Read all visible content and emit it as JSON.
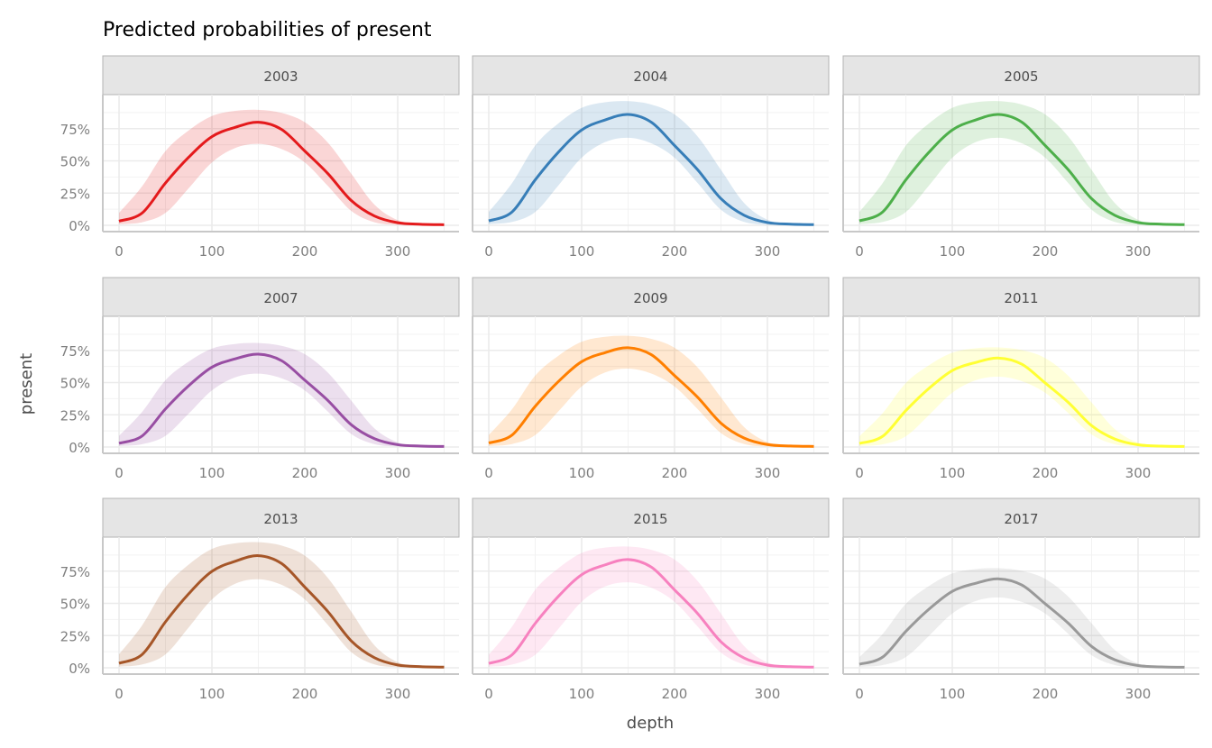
{
  "chart_data": {
    "type": "line",
    "title": "Predicted probabilities of present",
    "xlabel": "depth",
    "ylabel": "present",
    "xlim": [
      0,
      350
    ],
    "ylim": [
      0,
      1
    ],
    "x_ticks": [
      0,
      100,
      200,
      300
    ],
    "x_tick_labels": [
      "0",
      "100",
      "200",
      "300"
    ],
    "y_ticks": [
      0,
      0.25,
      0.5,
      0.75
    ],
    "y_tick_labels": [
      "0%",
      "25%",
      "50%",
      "75%"
    ],
    "grid": true,
    "legend": "none",
    "x": [
      0,
      25,
      50,
      75,
      100,
      125,
      150,
      175,
      200,
      225,
      250,
      275,
      300,
      325,
      350
    ],
    "shape_normalized_to_peak": {
      "fit": [
        0.04,
        0.12,
        0.41,
        0.66,
        0.86,
        0.95,
        1.0,
        0.93,
        0.72,
        0.5,
        0.24,
        0.09,
        0.025,
        0.01,
        0.006
      ],
      "lower": [
        0.01,
        0.03,
        0.12,
        0.36,
        0.61,
        0.75,
        0.79,
        0.74,
        0.61,
        0.38,
        0.14,
        0.03,
        0.005,
        0.001,
        0.0
      ],
      "upper": [
        0.12,
        0.38,
        0.72,
        0.92,
        1.06,
        1.11,
        1.12,
        1.09,
        1.0,
        0.8,
        0.5,
        0.2,
        0.05,
        0.01,
        0.005
      ]
    },
    "series": [
      {
        "name": "2003",
        "color": "#E41A1C",
        "peak": 0.8
      },
      {
        "name": "2004",
        "color": "#377EB8",
        "peak": 0.86
      },
      {
        "name": "2005",
        "color": "#4DAF4A",
        "peak": 0.86
      },
      {
        "name": "2007",
        "color": "#984EA3",
        "peak": 0.72
      },
      {
        "name": "2009",
        "color": "#FF7F00",
        "peak": 0.77
      },
      {
        "name": "2011",
        "color": "#FFFF33",
        "peak": 0.69
      },
      {
        "name": "2013",
        "color": "#A65628",
        "peak": 0.87
      },
      {
        "name": "2015",
        "color": "#F781BF",
        "peak": 0.84
      },
      {
        "name": "2017",
        "color": "#999999",
        "peak": 0.69
      }
    ]
  }
}
